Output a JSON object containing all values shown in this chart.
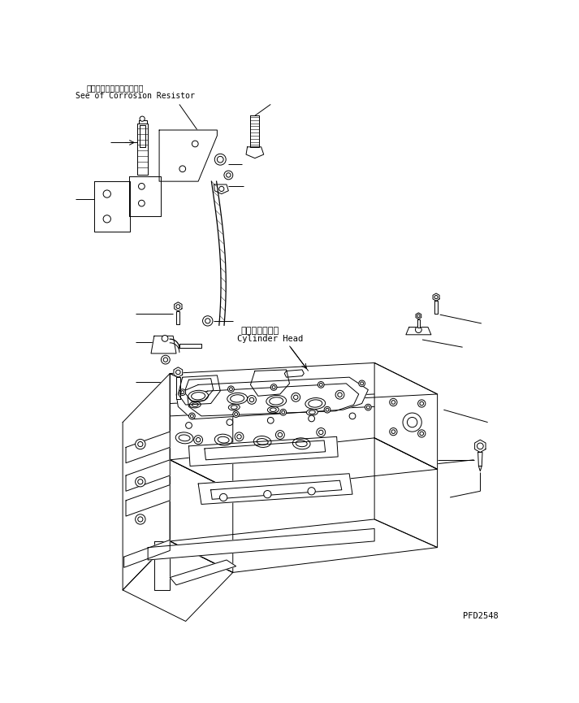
{
  "background_color": "#ffffff",
  "line_color": "#000000",
  "text_color": "#000000",
  "part_code": "PFD2548",
  "label_top_japanese": "コロージョンレジスタ参照",
  "label_top_english": "See of Corrosion Resistor",
  "label_cylinder_japanese": "シリンダヘッド",
  "label_cylinder_english": "Cylinder Head",
  "lw": 0.7
}
